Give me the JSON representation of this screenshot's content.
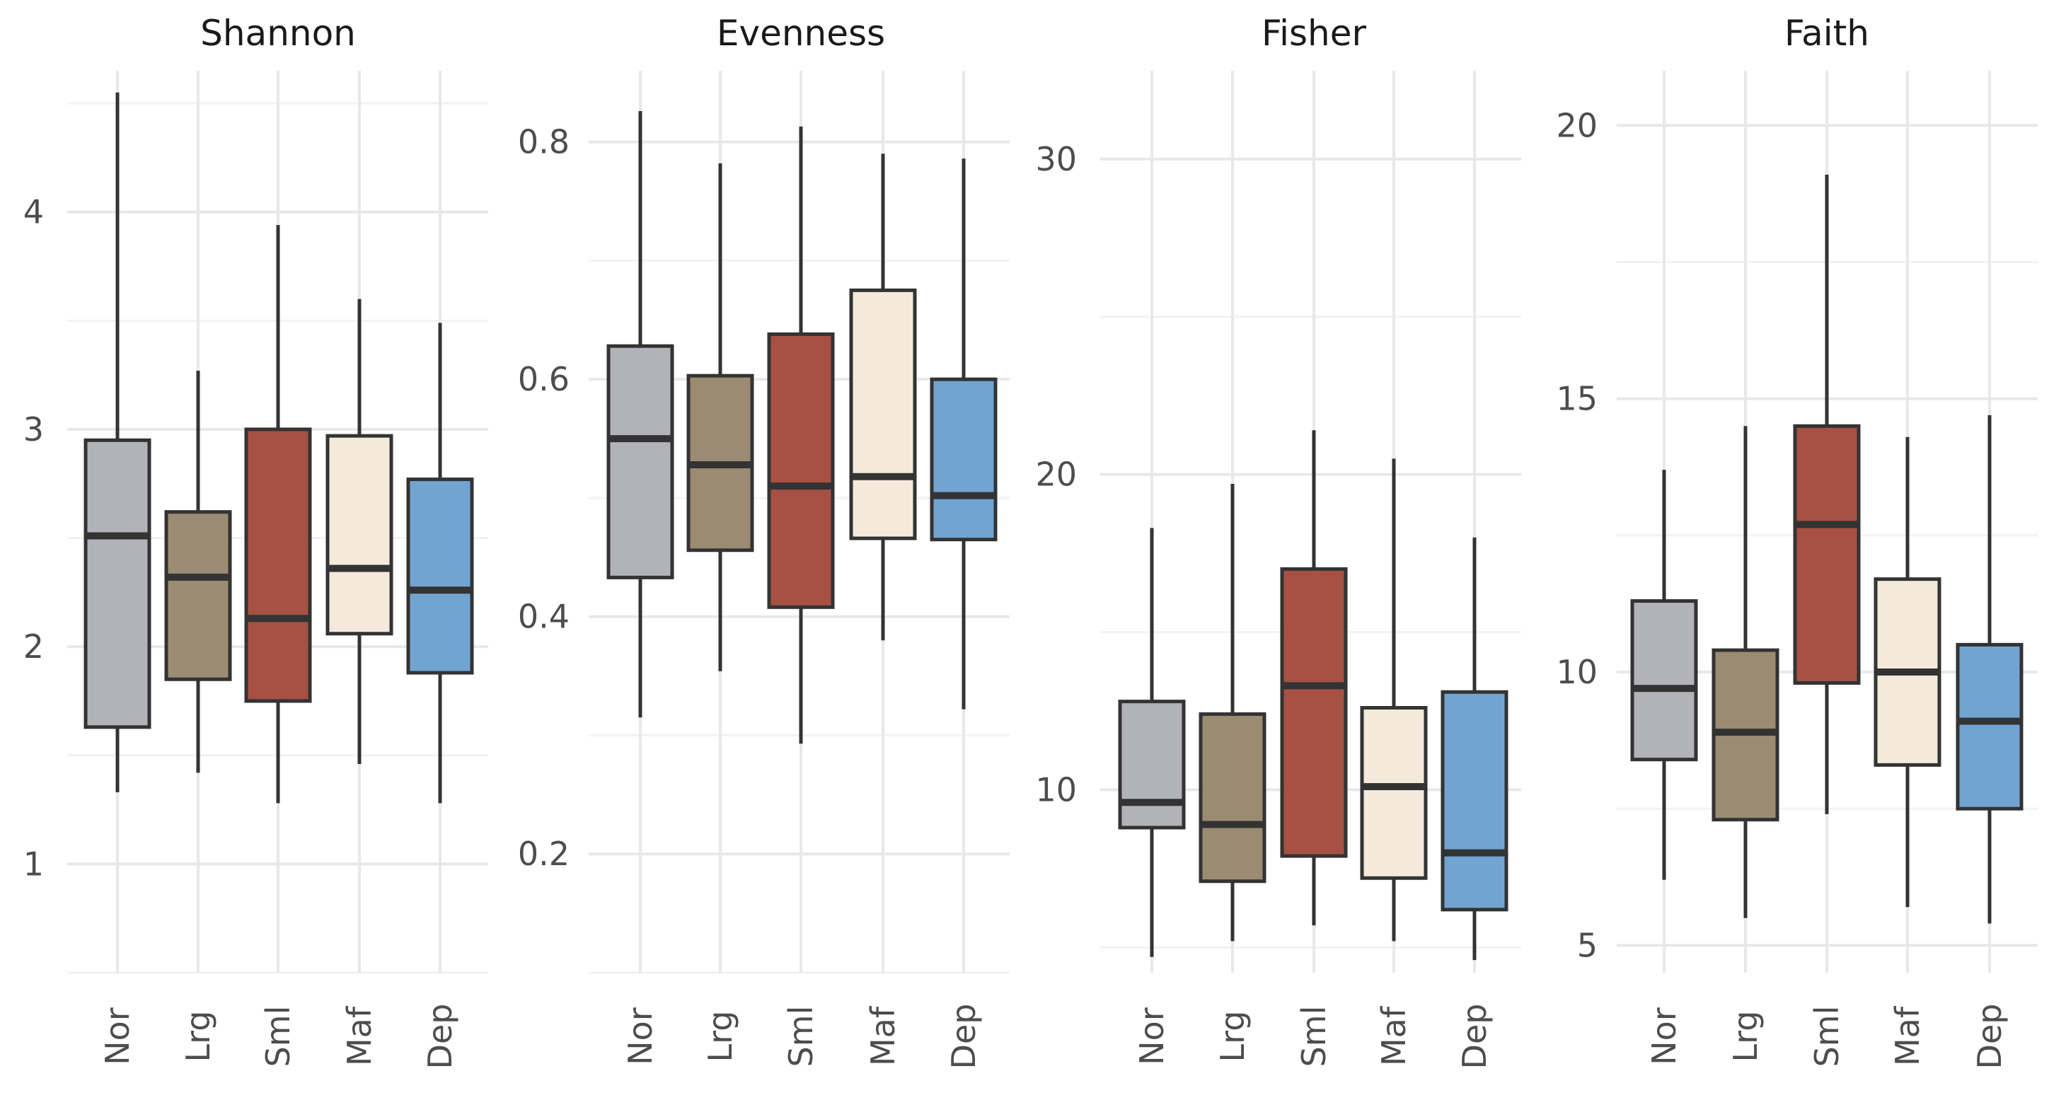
{
  "chart_data": [
    {
      "type": "boxplot",
      "title": "Shannon",
      "categories": [
        "Nor",
        "Lrg",
        "Sml",
        "Maf",
        "Dep"
      ],
      "yticks": [
        1,
        2,
        3,
        4
      ],
      "ylim": [
        0.5,
        4.65
      ],
      "boxes": [
        {
          "category": "Nor",
          "min": 1.33,
          "q1": 1.63,
          "median": 2.51,
          "q3": 2.95,
          "max": 4.55
        },
        {
          "category": "Lrg",
          "min": 1.42,
          "q1": 1.85,
          "median": 2.32,
          "q3": 2.62,
          "max": 3.27
        },
        {
          "category": "Sml",
          "min": 1.28,
          "q1": 1.75,
          "median": 2.13,
          "q3": 3.0,
          "max": 3.94
        },
        {
          "category": "Maf",
          "min": 1.46,
          "q1": 2.06,
          "median": 2.36,
          "q3": 2.97,
          "max": 3.6
        },
        {
          "category": "Dep",
          "min": 1.28,
          "q1": 1.88,
          "median": 2.26,
          "q3": 2.77,
          "max": 3.49
        }
      ]
    },
    {
      "type": "boxplot",
      "title": "Evenness",
      "categories": [
        "Nor",
        "Lrg",
        "Sml",
        "Maf",
        "Dep"
      ],
      "yticks": [
        0.2,
        0.4,
        0.6,
        0.8
      ],
      "ytick_labels": [
        "0.2",
        "0.4",
        "0.6",
        "0.8"
      ],
      "ylim": [
        0.1,
        0.86
      ],
      "boxes": [
        {
          "category": "Nor",
          "min": 0.315,
          "q1": 0.433,
          "median": 0.55,
          "q3": 0.628,
          "max": 0.826
        },
        {
          "category": "Lrg",
          "min": 0.354,
          "q1": 0.456,
          "median": 0.528,
          "q3": 0.603,
          "max": 0.782
        },
        {
          "category": "Sml",
          "min": 0.293,
          "q1": 0.408,
          "median": 0.51,
          "q3": 0.638,
          "max": 0.813
        },
        {
          "category": "Maf",
          "min": 0.38,
          "q1": 0.466,
          "median": 0.518,
          "q3": 0.675,
          "max": 0.79
        },
        {
          "category": "Dep",
          "min": 0.322,
          "q1": 0.465,
          "median": 0.502,
          "q3": 0.6,
          "max": 0.786
        }
      ]
    },
    {
      "type": "boxplot",
      "title": "Fisher",
      "categories": [
        "Nor",
        "Lrg",
        "Sml",
        "Maf",
        "Dep"
      ],
      "yticks": [
        10,
        20,
        30
      ],
      "ylim": [
        4.2,
        32.8
      ],
      "boxes": [
        {
          "category": "Nor",
          "min": 4.7,
          "q1": 8.8,
          "median": 9.6,
          "q3": 12.8,
          "max": 18.3
        },
        {
          "category": "Lrg",
          "min": 5.2,
          "q1": 7.1,
          "median": 8.9,
          "q3": 12.4,
          "max": 19.7
        },
        {
          "category": "Sml",
          "min": 5.7,
          "q1": 7.9,
          "median": 13.3,
          "q3": 17.0,
          "max": 21.4
        },
        {
          "category": "Maf",
          "min": 5.2,
          "q1": 7.2,
          "median": 10.1,
          "q3": 12.6,
          "max": 20.5
        },
        {
          "category": "Dep",
          "min": 4.6,
          "q1": 6.2,
          "median": 8.0,
          "q3": 13.1,
          "max": 18.0
        }
      ]
    },
    {
      "type": "boxplot",
      "title": "Faith",
      "categories": [
        "Nor",
        "Lrg",
        "Sml",
        "Maf",
        "Dep"
      ],
      "yticks": [
        5,
        10,
        15,
        20
      ],
      "ylim": [
        4.5,
        21.0
      ],
      "boxes": [
        {
          "category": "Nor",
          "min": 6.2,
          "q1": 8.4,
          "median": 9.7,
          "q3": 11.3,
          "max": 13.7
        },
        {
          "category": "Lrg",
          "min": 5.5,
          "q1": 7.3,
          "median": 8.9,
          "q3": 10.4,
          "max": 14.5
        },
        {
          "category": "Sml",
          "min": 7.4,
          "q1": 9.8,
          "median": 12.7,
          "q3": 14.5,
          "max": 19.1
        },
        {
          "category": "Maf",
          "min": 5.7,
          "q1": 8.3,
          "median": 10.0,
          "q3": 11.7,
          "max": 14.3
        },
        {
          "category": "Dep",
          "min": 5.4,
          "q1": 7.5,
          "median": 9.1,
          "q3": 10.5,
          "max": 14.7
        }
      ]
    }
  ],
  "colors": {
    "Nor": "#b1b3b6",
    "Lrg": "#9b8b72",
    "Sml": "#a65144",
    "Maf": "#f3eadc",
    "Dep": "#72a4d1",
    "outline": "#333333",
    "grid": "#e8e8e8"
  }
}
